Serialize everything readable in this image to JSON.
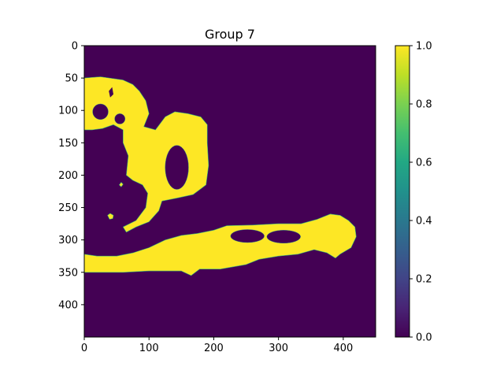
{
  "chart_data": {
    "type": "heatmap",
    "title": "Group 7",
    "xlabel": "",
    "ylabel": "",
    "image_extent": {
      "x": [
        0,
        450
      ],
      "y": [
        0,
        450
      ]
    },
    "xlim": [
      0,
      450
    ],
    "ylim": [
      450,
      0
    ],
    "xticks": [
      0,
      100,
      200,
      300,
      400
    ],
    "yticks": [
      0,
      50,
      100,
      150,
      200,
      250,
      300,
      350,
      400
    ],
    "colormap": "viridis",
    "value_range": [
      0,
      1
    ],
    "colorbar_ticks": [
      0.0,
      0.2,
      0.4,
      0.6,
      0.8,
      1.0
    ],
    "colorbar_tick_labels": [
      "0.0",
      "0.2",
      "0.4",
      "0.6",
      "0.8",
      "1.0"
    ],
    "background_value": 0,
    "background_color": "#440154",
    "foreground_value": 1,
    "foreground_color": "#fde725",
    "mask_regions": [
      {
        "name": "upper-blob",
        "value": 1,
        "outline": [
          [
            0,
            50
          ],
          [
            25,
            48
          ],
          [
            60,
            53
          ],
          [
            75,
            60
          ],
          [
            85,
            70
          ],
          [
            95,
            85
          ],
          [
            100,
            105
          ],
          [
            92,
            125
          ],
          [
            110,
            130
          ],
          [
            125,
            110
          ],
          [
            140,
            102
          ],
          [
            160,
            105
          ],
          [
            180,
            110
          ],
          [
            190,
            122
          ],
          [
            190,
            150
          ],
          [
            192,
            185
          ],
          [
            188,
            215
          ],
          [
            168,
            230
          ],
          [
            145,
            235
          ],
          [
            120,
            240
          ],
          [
            115,
            255
          ],
          [
            100,
            272
          ],
          [
            80,
            280
          ],
          [
            65,
            288
          ],
          [
            60,
            280
          ],
          [
            80,
            270
          ],
          [
            95,
            250
          ],
          [
            98,
            228
          ],
          [
            90,
            215
          ],
          [
            75,
            208
          ],
          [
            65,
            200
          ],
          [
            68,
            170
          ],
          [
            60,
            150
          ],
          [
            60,
            130
          ],
          [
            45,
            122
          ],
          [
            28,
            128
          ],
          [
            12,
            130
          ],
          [
            0,
            130
          ]
        ]
      },
      {
        "name": "lower-band",
        "value": 1,
        "outline": [
          [
            0,
            322
          ],
          [
            20,
            325
          ],
          [
            50,
            325
          ],
          [
            75,
            320
          ],
          [
            100,
            312
          ],
          [
            125,
            300
          ],
          [
            150,
            293
          ],
          [
            175,
            290
          ],
          [
            200,
            285
          ],
          [
            220,
            278
          ],
          [
            260,
            277
          ],
          [
            300,
            275
          ],
          [
            335,
            275
          ],
          [
            360,
            268
          ],
          [
            380,
            260
          ],
          [
            395,
            262
          ],
          [
            408,
            270
          ],
          [
            418,
            280
          ],
          [
            420,
            295
          ],
          [
            412,
            312
          ],
          [
            395,
            322
          ],
          [
            388,
            328
          ],
          [
            375,
            320
          ],
          [
            355,
            315
          ],
          [
            330,
            322
          ],
          [
            300,
            325
          ],
          [
            270,
            330
          ],
          [
            250,
            338
          ],
          [
            210,
            345
          ],
          [
            178,
            345
          ],
          [
            165,
            355
          ],
          [
            150,
            348
          ],
          [
            100,
            348
          ],
          [
            60,
            350
          ],
          [
            25,
            350
          ],
          [
            0,
            350
          ]
        ]
      },
      {
        "name": "small-dot-1",
        "value": 1,
        "outline": [
          [
            36,
            262
          ],
          [
            40,
            259
          ],
          [
            45,
            262
          ],
          [
            44,
            267
          ],
          [
            39,
            268
          ]
        ]
      },
      {
        "name": "small-dot-2",
        "value": 1,
        "outline": [
          [
            54,
            215
          ],
          [
            57,
            211
          ],
          [
            60,
            214
          ],
          [
            57,
            218
          ]
        ]
      }
    ],
    "hole_regions": [
      {
        "name": "hole-circle-upper-left",
        "value": 0,
        "center": [
          25,
          102
        ],
        "radius": [
          12,
          12
        ]
      },
      {
        "name": "hole-circle-small",
        "value": 0,
        "center": [
          55,
          113
        ],
        "radius": [
          8,
          8
        ]
      },
      {
        "name": "hole-notch",
        "value": 0,
        "outline": [
          [
            38,
            70
          ],
          [
            43,
            64
          ],
          [
            45,
            75
          ],
          [
            40,
            80
          ]
        ]
      },
      {
        "name": "hole-ring-inner",
        "value": 0,
        "center": [
          143,
          188
        ],
        "radius": [
          18,
          34
        ]
      },
      {
        "name": "hole-lower-left-eye",
        "value": 0,
        "center": [
          252,
          294
        ],
        "radius": [
          26,
          10
        ]
      },
      {
        "name": "hole-lower-right-eye",
        "value": 0,
        "center": [
          308,
          295
        ],
        "radius": [
          26,
          10
        ]
      }
    ]
  }
}
